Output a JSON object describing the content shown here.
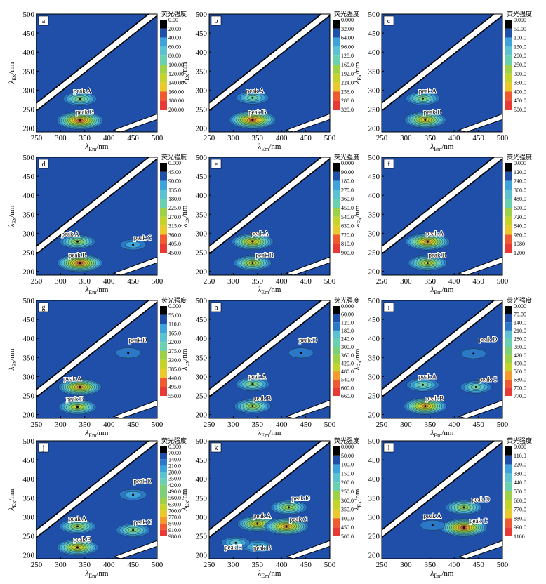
{
  "common": {
    "xlabel_main": "λ",
    "xlabel_sub": "Em",
    "xlabel_unit": "/nm",
    "ylabel_main": "λ",
    "ylabel_sub": "Ex",
    "ylabel_unit": "/nm",
    "x_ticks": [
      "250",
      "300",
      "350",
      "400",
      "450",
      "500"
    ],
    "y_ticks": [
      "200",
      "250",
      "300",
      "350",
      "400",
      "450",
      "500"
    ],
    "colorbar_title": "荧光强度"
  },
  "colors": {
    "background": "#1f4fa8",
    "contour_levels": [
      "#000000",
      "#1f4fa8",
      "#2c78c8",
      "#3ea3da",
      "#5cc2d2",
      "#6ad0b0",
      "#7dcf78",
      "#9ed048",
      "#c5d32a",
      "#e9c92c",
      "#f29a2c",
      "#f05a30",
      "#e83a34"
    ]
  },
  "chart_data": [
    {
      "type": "heatmap",
      "panel": "a",
      "xlim": [
        250,
        500
      ],
      "ylim": [
        190,
        500
      ],
      "colorbar_ticks": [
        "0.00",
        "20.00",
        "40.00",
        "60.00",
        "80.00",
        "100.00",
        "120.00",
        "140.00",
        "160.00",
        "180.00",
        "200.00"
      ],
      "peaks": [
        {
          "name": "peak A",
          "em": 340,
          "ex": 277,
          "level": 0.45
        },
        {
          "name": "peak B",
          "em": 340,
          "ex": 220,
          "level": 0.95
        }
      ],
      "annotations": [
        {
          "text": "peak A",
          "em": 345,
          "ex": 292
        },
        {
          "text": "peak B",
          "em": 350,
          "ex": 237
        }
      ]
    },
    {
      "type": "heatmap",
      "panel": "b",
      "xlim": [
        250,
        500
      ],
      "ylim": [
        190,
        500
      ],
      "colorbar_ticks": [
        "0.000",
        "32.00",
        "64.00",
        "96.00",
        "128.0",
        "160.0",
        "192.0",
        "224.0",
        "256.0",
        "288.0",
        "320.0"
      ],
      "peaks": [
        {
          "name": "peak A",
          "em": 340,
          "ex": 280,
          "level": 0.4
        },
        {
          "name": "peak B",
          "em": 340,
          "ex": 222,
          "level": 0.95
        }
      ],
      "annotations": [
        {
          "text": "peak A",
          "em": 345,
          "ex": 292
        },
        {
          "text": "peak B",
          "em": 350,
          "ex": 237
        }
      ]
    },
    {
      "type": "heatmap",
      "panel": "c",
      "xlim": [
        250,
        500
      ],
      "ylim": [
        190,
        500
      ],
      "colorbar_ticks": [
        "0.000",
        "50.00",
        "100.0",
        "150.0",
        "200.0",
        "250.0",
        "300.0",
        "350.0",
        "400.0",
        "450.0",
        "500.0"
      ],
      "peaks": [
        {
          "name": "peak A",
          "em": 335,
          "ex": 278,
          "level": 0.45
        },
        {
          "name": "peak B",
          "em": 340,
          "ex": 222,
          "level": 0.75
        }
      ],
      "annotations": [
        {
          "text": "peak A",
          "em": 345,
          "ex": 292
        },
        {
          "text": "peak B",
          "em": 355,
          "ex": 237
        }
      ]
    },
    {
      "type": "heatmap",
      "panel": "d",
      "xlim": [
        250,
        500
      ],
      "ylim": [
        190,
        500
      ],
      "colorbar_ticks": [
        "0.000",
        "45.00",
        "90.00",
        "135.0",
        "180.0",
        "225.0",
        "270.0",
        "315.0",
        "360.0",
        "405.0",
        "450.0"
      ],
      "peaks": [
        {
          "name": "peak A",
          "em": 335,
          "ex": 278,
          "level": 0.5
        },
        {
          "name": "peak B",
          "em": 340,
          "ex": 222,
          "level": 0.9
        },
        {
          "name": "peak C",
          "em": 450,
          "ex": 270,
          "level": 0.15
        }
      ],
      "annotations": [
        {
          "text": "peak A",
          "em": 320,
          "ex": 292
        },
        {
          "text": "peak B",
          "em": 335,
          "ex": 237
        },
        {
          "text": "peak C",
          "em": 470,
          "ex": 282
        }
      ]
    },
    {
      "type": "heatmap",
      "panel": "e",
      "xlim": [
        250,
        500
      ],
      "ylim": [
        190,
        500
      ],
      "colorbar_ticks": [
        "0.000",
        "90.00",
        "180.0",
        "270.0",
        "360.0",
        "450.0",
        "540.0",
        "630.0",
        "720.0",
        "810.0",
        "900.0"
      ],
      "peaks": [
        {
          "name": "peak A",
          "em": 340,
          "ex": 278,
          "level": 0.75
        },
        {
          "name": "peak B",
          "em": 340,
          "ex": 222,
          "level": 0.6
        }
      ],
      "annotations": [
        {
          "text": "peak A",
          "em": 355,
          "ex": 294
        },
        {
          "text": "peak B",
          "em": 365,
          "ex": 237
        }
      ]
    },
    {
      "type": "heatmap",
      "panel": "f",
      "xlim": [
        250,
        500
      ],
      "ylim": [
        190,
        500
      ],
      "colorbar_ticks": [
        "0.000",
        "120.0",
        "240.0",
        "360.0",
        "480.0",
        "600.0",
        "720.0",
        "840.0",
        "960.0",
        "1080",
        "1200"
      ],
      "peaks": [
        {
          "name": "peak A",
          "em": 345,
          "ex": 278,
          "level": 0.85
        },
        {
          "name": "peak B",
          "em": 345,
          "ex": 222,
          "level": 0.65
        }
      ],
      "annotations": [
        {
          "text": "peak A",
          "em": 360,
          "ex": 294
        },
        {
          "text": "peak B",
          "em": 365,
          "ex": 237
        }
      ]
    },
    {
      "type": "heatmap",
      "panel": "g",
      "xlim": [
        250,
        500
      ],
      "ylim": [
        190,
        500
      ],
      "colorbar_ticks": [
        "0.000",
        "55.00",
        "110.0",
        "165.0",
        "220.0",
        "275.0",
        "330.0",
        "385.0",
        "440.0",
        "495.0",
        "550.0"
      ],
      "peaks": [
        {
          "name": "peak A",
          "em": 340,
          "ex": 272,
          "level": 0.8
        },
        {
          "name": "peak B",
          "em": 335,
          "ex": 220,
          "level": 0.6
        },
        {
          "name": "peak D",
          "em": 440,
          "ex": 362,
          "level": 0.12
        }
      ],
      "annotations": [
        {
          "text": "peak A",
          "em": 325,
          "ex": 289
        },
        {
          "text": "peak B",
          "em": 330,
          "ex": 235
        },
        {
          "text": "peak D",
          "em": 460,
          "ex": 390
        }
      ]
    },
    {
      "type": "heatmap",
      "panel": "h",
      "xlim": [
        250,
        500
      ],
      "ylim": [
        190,
        500
      ],
      "colorbar_ticks": [
        "0.000",
        "60.00",
        "120.0",
        "180.0",
        "240.0",
        "300.0",
        "360.0",
        "420.0",
        "480.0",
        "540.0",
        "600.0",
        "660.0"
      ],
      "peaks": [
        {
          "name": "peak A",
          "em": 340,
          "ex": 280,
          "level": 0.45
        },
        {
          "name": "peak B",
          "em": 340,
          "ex": 222,
          "level": 0.55
        },
        {
          "name": "peak D",
          "em": 440,
          "ex": 362,
          "level": 0.1
        }
      ],
      "annotations": [
        {
          "text": "peak A",
          "em": 350,
          "ex": 294
        },
        {
          "text": "peak B",
          "em": 360,
          "ex": 237
        },
        {
          "text": "peak D",
          "em": 455,
          "ex": 390
        }
      ]
    },
    {
      "type": "heatmap",
      "panel": "i",
      "xlim": [
        250,
        500
      ],
      "ylim": [
        190,
        500
      ],
      "colorbar_ticks": [
        "0.000",
        "70.00",
        "140.0",
        "210.0",
        "280.0",
        "350.0",
        "420.0",
        "490.0",
        "560.0",
        "630.0",
        "700.0",
        "770.0"
      ],
      "peaks": [
        {
          "name": "peak A",
          "em": 335,
          "ex": 278,
          "level": 0.4
        },
        {
          "name": "peak B",
          "em": 340,
          "ex": 222,
          "level": 0.8
        },
        {
          "name": "peak C",
          "em": 445,
          "ex": 272,
          "level": 0.35
        },
        {
          "name": "peak D",
          "em": 440,
          "ex": 360,
          "level": 0.1
        }
      ],
      "annotations": [
        {
          "text": "peak A",
          "em": 345,
          "ex": 294
        },
        {
          "text": "peak B",
          "em": 360,
          "ex": 237
        },
        {
          "text": "peak C",
          "em": 470,
          "ex": 287
        },
        {
          "text": "peak D",
          "em": 470,
          "ex": 392
        }
      ]
    },
    {
      "type": "heatmap",
      "panel": "j",
      "xlim": [
        250,
        500
      ],
      "ylim": [
        190,
        500
      ],
      "colorbar_ticks": [
        "0.000",
        "70.00",
        "140.0",
        "210.0",
        "280.0",
        "350.0",
        "420.0",
        "490.0",
        "560.0",
        "630.0",
        "700.0",
        "770.0",
        "840.0",
        "910.0",
        "980.0"
      ],
      "peaks": [
        {
          "name": "peak A",
          "em": 335,
          "ex": 275,
          "level": 0.55
        },
        {
          "name": "peak B",
          "em": 335,
          "ex": 220,
          "level": 0.75
        },
        {
          "name": "peak C",
          "em": 450,
          "ex": 265,
          "level": 0.45
        },
        {
          "name": "peak D",
          "em": 450,
          "ex": 358,
          "level": 0.2
        }
      ],
      "annotations": [
        {
          "text": "peak A",
          "em": 335,
          "ex": 290
        },
        {
          "text": "peak B",
          "em": 345,
          "ex": 235
        },
        {
          "text": "peak C",
          "em": 470,
          "ex": 280
        },
        {
          "text": "peak D",
          "em": 470,
          "ex": 388
        }
      ]
    },
    {
      "type": "heatmap",
      "panel": "k",
      "xlim": [
        250,
        500
      ],
      "ylim": [
        190,
        500
      ],
      "colorbar_ticks": [
        "0.000",
        "50.00",
        "100.0",
        "150.0",
        "200.0",
        "250.0",
        "300.0",
        "350.0",
        "400.0",
        "450.0",
        "500.0"
      ],
      "peaks": [
        {
          "name": "peak A",
          "em": 350,
          "ex": 282,
          "level": 0.7
        },
        {
          "name": "peak C",
          "em": 410,
          "ex": 275,
          "level": 0.85
        },
        {
          "name": "peak D",
          "em": 415,
          "ex": 325,
          "level": 0.55
        },
        {
          "name": "peak B",
          "em": 350,
          "ex": 222,
          "level": 0.3
        },
        {
          "name": "peak E",
          "em": 305,
          "ex": 232,
          "level": 0.25
        }
      ],
      "annotations": [
        {
          "text": "peak A",
          "em": 360,
          "ex": 297
        },
        {
          "text": "peak B",
          "em": 360,
          "ex": 213
        },
        {
          "text": "peak C",
          "em": 435,
          "ex": 288
        },
        {
          "text": "peak D",
          "em": 440,
          "ex": 343
        },
        {
          "text": "peak E",
          "em": 300,
          "ex": 215
        }
      ]
    },
    {
      "type": "heatmap",
      "panel": "l",
      "xlim": [
        250,
        500
      ],
      "ylim": [
        190,
        500
      ],
      "colorbar_ticks": [
        "0.000",
        "110.0",
        "220.0",
        "330.0",
        "440.0",
        "550.0",
        "660.0",
        "770.0",
        "880.0",
        "990.0",
        "1100"
      ],
      "peaks": [
        {
          "name": "peak C",
          "em": 420,
          "ex": 272,
          "level": 0.95
        },
        {
          "name": "peak D",
          "em": 420,
          "ex": 325,
          "level": 0.55
        },
        {
          "name": "peak A",
          "em": 355,
          "ex": 278,
          "level": 0.1
        }
      ],
      "annotations": [
        {
          "text": "peak A",
          "em": 355,
          "ex": 297
        },
        {
          "text": "peak C",
          "em": 450,
          "ex": 284
        },
        {
          "text": "peak D",
          "em": 455,
          "ex": 340
        }
      ]
    }
  ]
}
